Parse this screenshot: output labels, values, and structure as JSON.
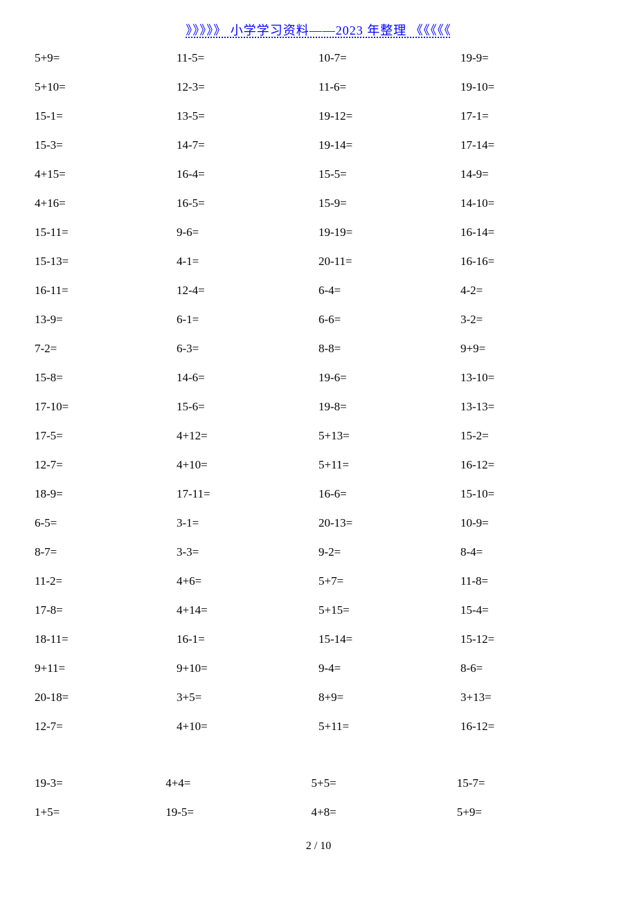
{
  "header": {
    "text": "》》》》》 小学学习资料——2023 年整理 《《《《《"
  },
  "colors": {
    "text": "#000000",
    "link": "#0000ff",
    "background": "#ffffff"
  },
  "typography": {
    "body_fontsize": 17,
    "header_fontsize": 18,
    "font_family": "SimSun"
  },
  "page_number": "2 / 10",
  "table1": {
    "type": "table",
    "columns": 4,
    "rows": [
      [
        "5+9=",
        "11-5=",
        "10-7=",
        "19-9="
      ],
      [
        "5+10=",
        "12-3=",
        "11-6=",
        "19-10="
      ],
      [
        "15-1=",
        "13-5=",
        "19-12=",
        "17-1="
      ],
      [
        "15-3=",
        "14-7=",
        "19-14=",
        "17-14="
      ],
      [
        "4+15=",
        "16-4=",
        "15-5=",
        "14-9="
      ],
      [
        "4+16=",
        "16-5=",
        "15-9=",
        "14-10="
      ],
      [
        "15-11=",
        "9-6=",
        "19-19=",
        "16-14="
      ],
      [
        "15-13=",
        "4-1=",
        "20-11=",
        "16-16="
      ],
      [
        "16-11=",
        "12-4=",
        "6-4=",
        "4-2="
      ],
      [
        "13-9=",
        "6-1=",
        "6-6=",
        "3-2="
      ],
      [
        "7-2=",
        "6-3=",
        "8-8=",
        "9+9="
      ],
      [
        "15-8=",
        "14-6=",
        "19-6=",
        "13-10="
      ],
      [
        "17-10=",
        "15-6=",
        "19-8=",
        "13-13="
      ],
      [
        "17-5=",
        "4+12=",
        "5+13=",
        "15-2="
      ],
      [
        "12-7=",
        "4+10=",
        "5+11=",
        "16-12="
      ],
      [
        "18-9=",
        "17-11=",
        "16-6=",
        "15-10="
      ],
      [
        "6-5=",
        "3-1=",
        "20-13=",
        "10-9="
      ],
      [
        "8-7=",
        "3-3=",
        "9-2=",
        "8-4="
      ],
      [
        "11-2=",
        "4+6=",
        "5+7=",
        "11-8="
      ],
      [
        "17-8=",
        "4+14=",
        "5+15=",
        "15-4="
      ],
      [
        "18-11=",
        "16-1=",
        "15-14=",
        "15-12="
      ],
      [
        "9+11=",
        "9+10=",
        "9-4=",
        "8-6="
      ],
      [
        "20-18=",
        "3+5=",
        "8+9=",
        "3+13="
      ],
      [
        "12-7=",
        "4+10=",
        "5+11=",
        "16-12="
      ]
    ]
  },
  "table2": {
    "type": "table",
    "columns": 4,
    "rows": [
      [
        "19-3=",
        "4+4=",
        "5+5=",
        "15-7="
      ],
      [
        "1+5=",
        "19-5=",
        "4+8=",
        "5+9="
      ]
    ]
  }
}
